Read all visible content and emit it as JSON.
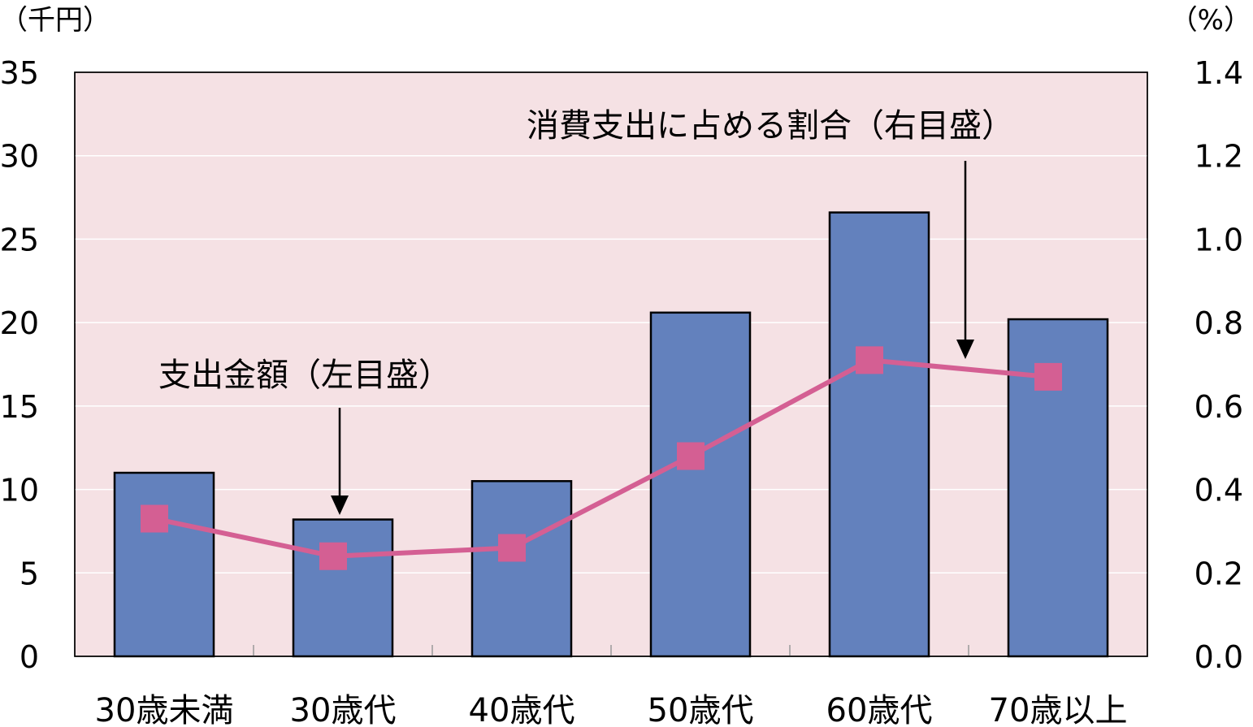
{
  "colors": {
    "plot_bg": "#f5e1e4",
    "bar_fill": "#6381bd",
    "bar_stroke": "#000000",
    "line": "#d45f93",
    "marker": "#d45f93",
    "grid": "#ffffff"
  },
  "chart_data": {
    "type": "bar",
    "categories": [
      "30歳未満",
      "30歳代",
      "40歳代",
      "50歳代",
      "60歳代",
      "70歳以上"
    ],
    "left_axis": {
      "unit_label": "（千円）",
      "ylim": [
        0,
        35
      ],
      "ticks": [
        "0",
        "5",
        "10",
        "15",
        "20",
        "25",
        "30",
        "35"
      ]
    },
    "right_axis": {
      "unit_label": "（%）",
      "ylim": [
        0,
        1.4
      ],
      "ticks": [
        "0.0",
        "0.2",
        "0.4",
        "0.6",
        "0.8",
        "1.0",
        "1.2",
        "1.4"
      ]
    },
    "series": [
      {
        "type": "bar",
        "axis": "left",
        "values": [
          11.0,
          8.2,
          10.5,
          20.6,
          26.6,
          20.2
        ]
      },
      {
        "type": "line",
        "axis": "right",
        "values": [
          0.33,
          0.24,
          0.26,
          0.48,
          0.71,
          0.67
        ]
      }
    ],
    "annotations": [
      {
        "text": "支出金額（左目盛）",
        "points_to": "bar"
      },
      {
        "text": "消費支出に占める割合（右目盛）",
        "points_to": "line"
      }
    ],
    "grid": true
  }
}
